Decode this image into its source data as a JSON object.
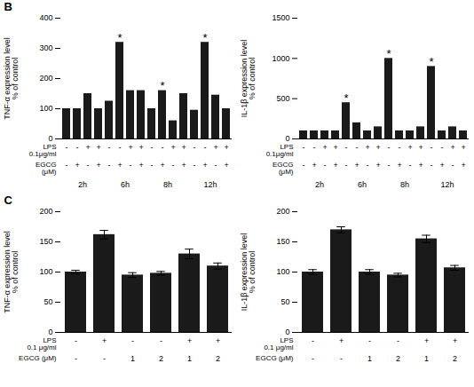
{
  "chart_data": [
    {
      "type": "bar",
      "title": "B",
      "categories": [
        null,
        null,
        null,
        null,
        null,
        null,
        null,
        null,
        null,
        null,
        null,
        null,
        null,
        null,
        null,
        null
      ],
      "values": [
        100,
        100,
        150,
        100,
        125,
        320,
        160,
        160,
        100,
        160,
        60,
        150,
        95,
        320,
        145,
        100
      ],
      "color": "#1a1a1a",
      "ylim": [
        0,
        400
      ],
      "yticks": [
        0,
        100,
        200,
        300,
        400
      ],
      "ylabel": "TNF-α expression level\n% of control",
      "grid": false,
      "tick_labels": "y",
      "annotations": [
        {
          "text": "*",
          "positions": [
            5,
            9,
            13
          ]
        }
      ],
      "x_rows": [
        {
          "label": "LPS\n0.1μg/ml",
          "values": [
            "-",
            "-",
            "+",
            "+",
            "-",
            "-",
            "+",
            "+",
            "-",
            "-",
            "+",
            "+",
            "-",
            "-",
            "+",
            "+"
          ]
        },
        {
          "label": "EGCG\n(μM)",
          "values": [
            "-",
            "+",
            "-",
            "+",
            "-",
            "+",
            "-",
            "+",
            "-",
            "+",
            "-",
            "+",
            "-",
            "+",
            "-",
            "+"
          ]
        }
      ],
      "groups": [
        "2h",
        "6h",
        "8h",
        "12h"
      ]
    },
    {
      "type": "bar",
      "categories": [
        null,
        null,
        null,
        null,
        null,
        null,
        null,
        null,
        null,
        null,
        null,
        null,
        null,
        null,
        null,
        null
      ],
      "values": [
        100,
        100,
        100,
        100,
        450,
        200,
        100,
        150,
        1000,
        100,
        100,
        150,
        900,
        100,
        150,
        100
      ],
      "color": "#1a1a1a",
      "ylim": [
        0,
        1500
      ],
      "yticks": [
        0,
        500,
        1000,
        1500
      ],
      "ylabel": "IL-1β expression level\n% of control",
      "grid": false,
      "tick_labels": "y",
      "annotations": [
        {
          "text": "*",
          "positions": [
            4,
            8,
            12
          ]
        }
      ],
      "x_rows": [
        {
          "label": "LPS\n0.1μg/ml",
          "values": [
            "-",
            "-",
            "+",
            "+",
            "-",
            "-",
            "+",
            "+",
            "-",
            "-",
            "+",
            "+",
            "-",
            "-",
            "+",
            "+"
          ]
        },
        {
          "label": "EGCG\n(μM)",
          "values": [
            "-",
            "+",
            "-",
            "+",
            "-",
            "+",
            "-",
            "+",
            "-",
            "+",
            "-",
            "+",
            "-",
            "+",
            "-",
            "+"
          ]
        }
      ],
      "groups": [
        "2h",
        "6h",
        "8h",
        "12h"
      ]
    },
    {
      "type": "bar",
      "title": "C",
      "categories": [
        null,
        null,
        null,
        null,
        null,
        null
      ],
      "values": [
        100,
        162,
        95,
        98,
        130,
        110
      ],
      "errors": [
        3,
        7,
        4,
        3,
        8,
        5
      ],
      "color": "#1a1a1a",
      "ylim": [
        0,
        200
      ],
      "yticks": [
        0,
        50,
        100,
        150,
        200
      ],
      "ylabel": "TNF-α expression level\n% of control",
      "grid": false,
      "tick_labels": "y",
      "x_rows": [
        {
          "label": "LPS\n0.1 μg/ml",
          "values": [
            "-",
            "+",
            "-",
            "-",
            "+",
            "+"
          ]
        },
        {
          "label": "EGCG (μM)",
          "values": [
            "-",
            "-",
            "1",
            "2",
            "1",
            "2"
          ]
        }
      ]
    },
    {
      "type": "bar",
      "categories": [
        null,
        null,
        null,
        null,
        null,
        null
      ],
      "values": [
        100,
        170,
        100,
        95,
        155,
        107
      ],
      "errors": [
        4,
        5,
        4,
        3,
        6,
        4
      ],
      "color": "#1a1a1a",
      "ylim": [
        0,
        200
      ],
      "yticks": [
        0,
        50,
        100,
        150,
        200
      ],
      "ylabel": "IL-1β expression level\n% of control",
      "grid": false,
      "tick_labels": "y",
      "x_rows": [
        {
          "label": "LPS\n0.1 μg/ml",
          "values": [
            "-",
            "+",
            "-",
            "-",
            "+",
            "+"
          ]
        },
        {
          "label": "EGCG (μM)",
          "values": [
            "-",
            "-",
            "1",
            "2",
            "1",
            "2"
          ]
        }
      ]
    }
  ]
}
